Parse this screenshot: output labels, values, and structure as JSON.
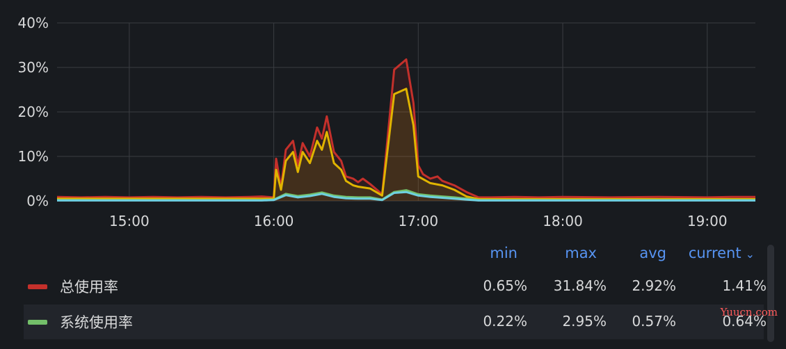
{
  "chart_data": {
    "type": "line",
    "ylim": [
      0,
      40
    ],
    "yticks": [
      "0%",
      "10%",
      "20%",
      "30%",
      "40%"
    ],
    "xticks": [
      "15:00",
      "16:00",
      "17:00",
      "18:00",
      "19:00"
    ],
    "grid": true,
    "series": [
      {
        "name": "总使用率",
        "color": "#c4302b",
        "x": [
          "14:30",
          "14:40",
          "14:50",
          "15:00",
          "15:10",
          "15:20",
          "15:30",
          "15:40",
          "15:50",
          "15:55",
          "16:00",
          "16:01",
          "16:03",
          "16:05",
          "16:08",
          "16:10",
          "16:12",
          "16:15",
          "16:18",
          "16:20",
          "16:22",
          "16:25",
          "16:28",
          "16:30",
          "16:33",
          "16:35",
          "16:37",
          "16:40",
          "16:45",
          "16:50",
          "16:55",
          "16:58",
          "17:00",
          "17:02",
          "17:05",
          "17:08",
          "17:10",
          "17:15",
          "17:20",
          "17:25",
          "17:30",
          "17:40",
          "17:50",
          "18:00",
          "18:20",
          "18:40",
          "19:00",
          "19:10",
          "19:20"
        ],
        "y": [
          0.9,
          0.8,
          0.9,
          0.8,
          0.9,
          0.8,
          0.9,
          0.8,
          0.9,
          1.0,
          0.8,
          9.5,
          3.0,
          11.5,
          13.5,
          8.0,
          13.0,
          10.0,
          16.5,
          14.0,
          19.0,
          11.0,
          9.0,
          5.5,
          5.0,
          4.2,
          5.0,
          3.8,
          1.5,
          29.5,
          31.8,
          22.0,
          8.0,
          6.0,
          5.0,
          5.5,
          4.5,
          3.5,
          2.0,
          0.8,
          0.8,
          0.9,
          0.8,
          0.9,
          0.8,
          0.9,
          0.8,
          0.9,
          0.9
        ]
      },
      {
        "name": "",
        "color": "#e0b400",
        "x": [
          "14:30",
          "15:50",
          "16:00",
          "16:01",
          "16:03",
          "16:05",
          "16:08",
          "16:10",
          "16:12",
          "16:15",
          "16:18",
          "16:20",
          "16:22",
          "16:25",
          "16:28",
          "16:30",
          "16:33",
          "16:35",
          "16:40",
          "16:45",
          "16:50",
          "16:55",
          "16:58",
          "17:00",
          "17:05",
          "17:10",
          "17:15",
          "17:20",
          "17:25",
          "17:30",
          "19:20"
        ],
        "y": [
          0.5,
          0.5,
          0.5,
          7.0,
          2.5,
          9.0,
          11.0,
          6.5,
          11.0,
          8.5,
          13.5,
          11.5,
          15.5,
          8.5,
          7.0,
          4.5,
          3.5,
          3.2,
          2.8,
          1.2,
          24.0,
          25.2,
          17.0,
          5.5,
          4.0,
          3.5,
          2.5,
          1.0,
          0.4,
          0.4,
          0.4
        ]
      },
      {
        "name": "系统使用率",
        "color": "#73bf69",
        "x": [
          "14:30",
          "15:55",
          "16:00",
          "16:05",
          "16:10",
          "16:15",
          "16:20",
          "16:25",
          "16:30",
          "16:35",
          "16:40",
          "16:45",
          "16:50",
          "16:55",
          "17:00",
          "17:05",
          "17:10",
          "17:15",
          "17:20",
          "17:25",
          "19:20"
        ],
        "y": [
          0.2,
          0.2,
          0.3,
          1.6,
          1.1,
          1.4,
          1.9,
          1.2,
          0.9,
          0.8,
          0.8,
          0.3,
          2.0,
          2.4,
          1.5,
          1.2,
          1.0,
          0.8,
          0.5,
          0.2,
          0.2
        ]
      },
      {
        "name": "",
        "color": "#6ed0e0",
        "x": [
          "14:30",
          "15:55",
          "16:00",
          "16:05",
          "16:10",
          "16:15",
          "16:20",
          "16:25",
          "16:30",
          "16:35",
          "16:40",
          "16:45",
          "16:50",
          "16:55",
          "17:00",
          "17:05",
          "17:10",
          "17:20",
          "17:25",
          "19:20"
        ],
        "y": [
          0.1,
          0.1,
          0.2,
          1.3,
          0.8,
          1.1,
          1.6,
          0.9,
          0.6,
          0.5,
          0.5,
          0.2,
          1.8,
          2.0,
          1.2,
          0.9,
          0.7,
          0.3,
          0.1,
          0.1
        ]
      }
    ]
  },
  "legend": {
    "headers": {
      "min": "min",
      "max": "max",
      "avg": "avg",
      "current": "current"
    },
    "rows": [
      {
        "name": "总使用率",
        "color": "#c4302b",
        "min": "0.65%",
        "max": "31.84%",
        "avg": "2.92%",
        "current": "1.41%"
      },
      {
        "name": "系统使用率",
        "color": "#73bf69",
        "min": "0.22%",
        "max": "2.95%",
        "avg": "0.57%",
        "current": "0.64%"
      }
    ]
  },
  "watermark": "Yuucn.com"
}
